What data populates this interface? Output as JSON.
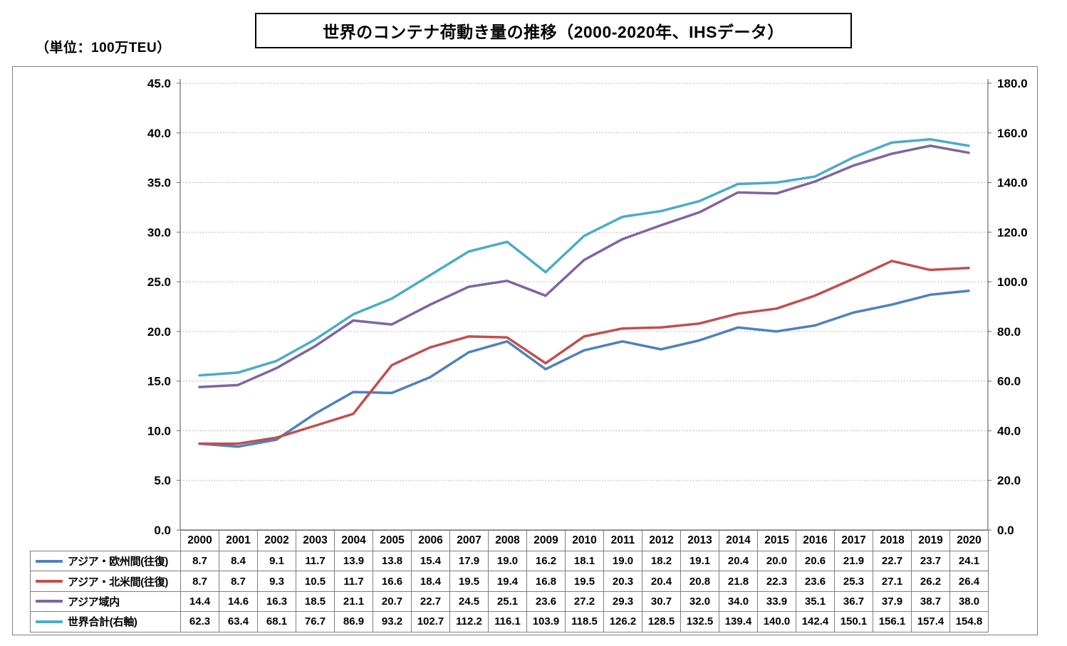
{
  "page": {
    "unit_label": "（単位：100万TEU）",
    "title": "世界のコンテナ荷動き量の推移（2000-2020年、IHSデータ）"
  },
  "chart_data": {
    "type": "line",
    "title": "世界のコンテナ荷動き量の推移（2000-2020年、IHSデータ）",
    "unit": "100万TEU",
    "x": [
      "2000",
      "2001",
      "2002",
      "2003",
      "2004",
      "2005",
      "2006",
      "2007",
      "2008",
      "2009",
      "2010",
      "2011",
      "2012",
      "2013",
      "2014",
      "2015",
      "2016",
      "2017",
      "2018",
      "2019",
      "2020"
    ],
    "series": [
      {
        "name": "アジア・欧州間(往復)",
        "axis": "left",
        "color": "#4F81BD",
        "values": [
          8.7,
          8.4,
          9.1,
          11.7,
          13.9,
          13.8,
          15.4,
          17.9,
          19.0,
          16.2,
          18.1,
          19.0,
          18.2,
          19.1,
          20.4,
          20.0,
          20.6,
          21.9,
          22.7,
          23.7,
          24.1
        ]
      },
      {
        "name": "アジア・北米間(往復)",
        "axis": "left",
        "color": "#C0504D",
        "values": [
          8.7,
          8.7,
          9.3,
          10.5,
          11.7,
          16.6,
          18.4,
          19.5,
          19.4,
          16.8,
          19.5,
          20.3,
          20.4,
          20.8,
          21.8,
          22.3,
          23.6,
          25.3,
          27.1,
          26.2,
          26.4
        ]
      },
      {
        "name": "アジア域内",
        "axis": "left",
        "color": "#8064A2",
        "values": [
          14.4,
          14.6,
          16.3,
          18.5,
          21.1,
          20.7,
          22.7,
          24.5,
          25.1,
          23.6,
          27.2,
          29.3,
          30.7,
          32.0,
          34.0,
          33.9,
          35.1,
          36.7,
          37.9,
          38.7,
          38.0
        ]
      },
      {
        "name": "世界合計(右軸)",
        "axis": "right",
        "color": "#4BACC6",
        "values": [
          62.3,
          63.4,
          68.1,
          76.7,
          86.9,
          93.2,
          102.7,
          112.2,
          116.1,
          103.9,
          118.5,
          126.2,
          128.5,
          132.5,
          139.4,
          140.0,
          142.4,
          150.1,
          156.1,
          157.4,
          154.8
        ]
      }
    ],
    "left_axis": {
      "min": 0,
      "max": 45,
      "step": 5,
      "tick_labels": [
        "0.0",
        "5.0",
        "10.0",
        "15.0",
        "20.0",
        "25.0",
        "30.0",
        "35.0",
        "40.0",
        "45.0"
      ]
    },
    "right_axis": {
      "min": 0,
      "max": 180,
      "step": 20,
      "tick_labels": [
        "0.0",
        "20.0",
        "40.0",
        "60.0",
        "80.0",
        "100.0",
        "120.0",
        "140.0",
        "160.0",
        "180.0"
      ]
    },
    "grid": "horizontal-dotted",
    "legend_position": "table-left"
  }
}
